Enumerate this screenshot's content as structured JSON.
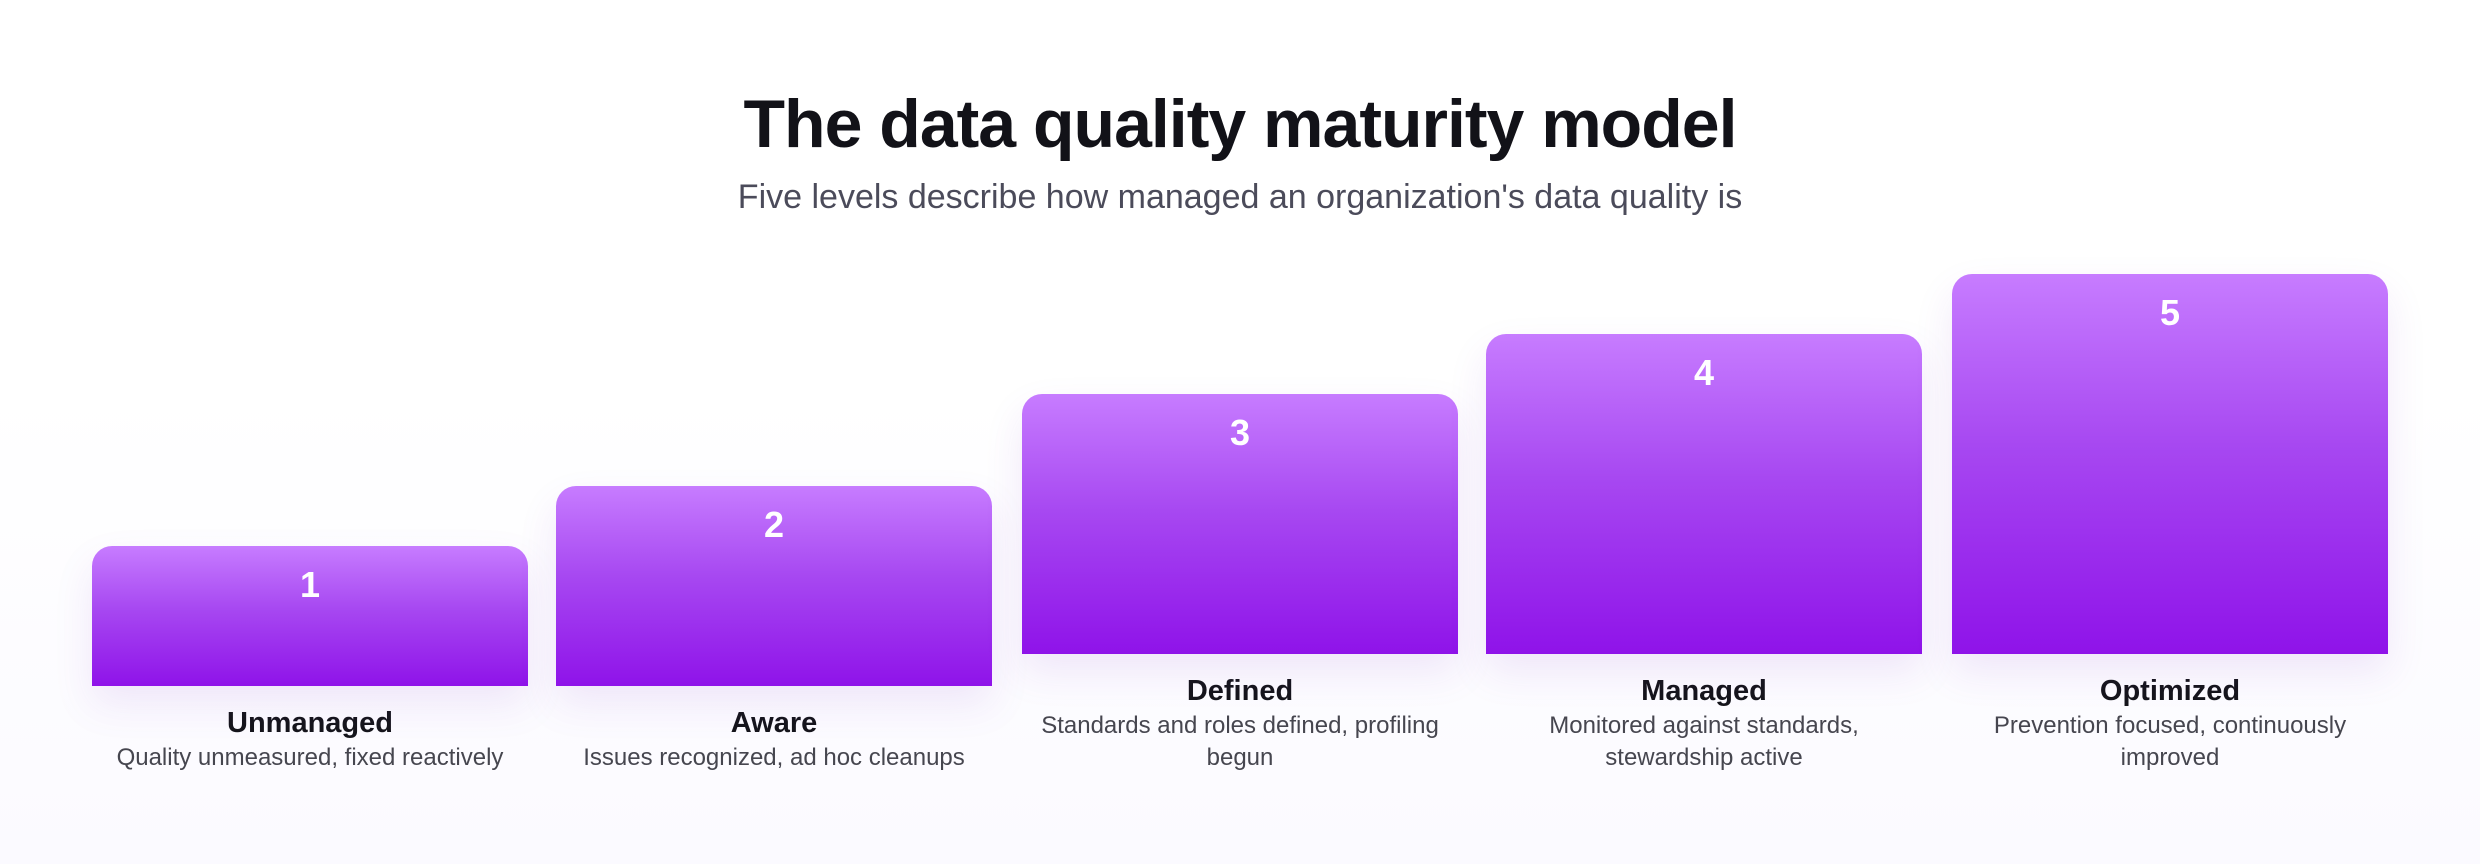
{
  "header": {
    "title": "The data quality maturity model",
    "subtitle": "Five levels describe how managed an organization's data quality is"
  },
  "levels": [
    {
      "number": "1",
      "name": "Unmanaged",
      "description": "Quality unmeasured, fixed reactively"
    },
    {
      "number": "2",
      "name": "Aware",
      "description": "Issues recognized, ad hoc cleanups"
    },
    {
      "number": "3",
      "name": "Defined",
      "description": "Standards and roles defined, profiling begun"
    },
    {
      "number": "4",
      "name": "Managed",
      "description": "Monitored against standards, stewardship active"
    },
    {
      "number": "5",
      "name": "Optimized",
      "description": "Prevention focused, continuously improved"
    }
  ],
  "colors": {
    "block_top": "#c77cff",
    "block_bottom": "#8f13e9",
    "title": "#121218",
    "subtitle": "#4b4b5a"
  }
}
